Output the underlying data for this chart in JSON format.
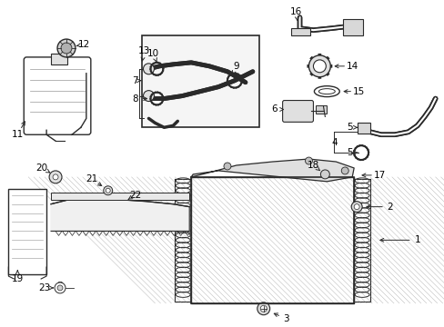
{
  "bg_color": "#ffffff",
  "line_color": "#2a2a2a",
  "fill_color": "#f0f0f0",
  "fig_width": 4.89,
  "fig_height": 3.6,
  "dpi": 100
}
